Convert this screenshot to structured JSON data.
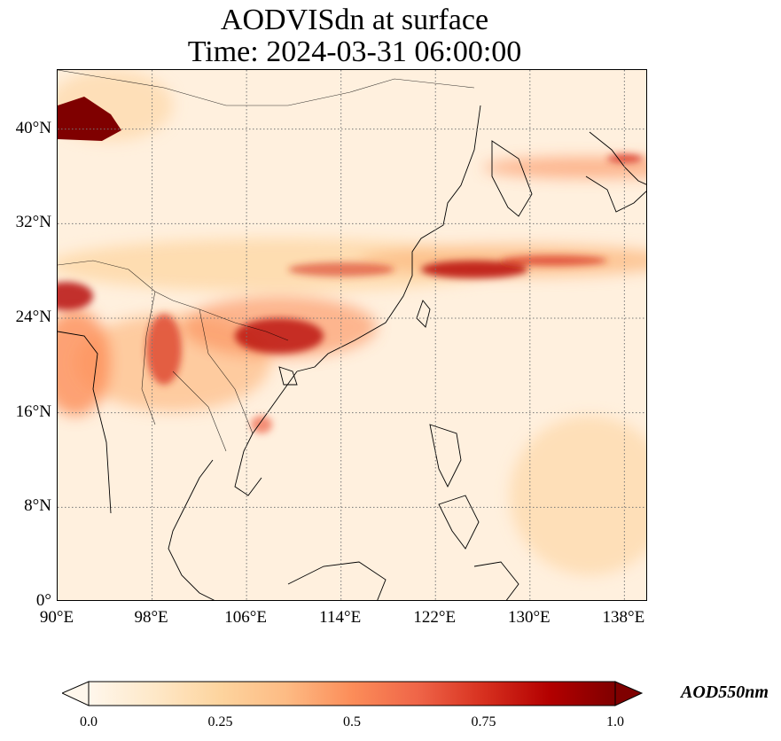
{
  "title": {
    "line1": "AODVISdn at surface",
    "line2": "Time: 2024-03-31 06:00:00"
  },
  "map": {
    "projection": "PlateCarree",
    "extent": {
      "lon": [
        90,
        140
      ],
      "lat": [
        0,
        45
      ]
    },
    "gridlines": "dotted",
    "coastlines": true,
    "borders": true
  },
  "axes": {
    "xticks": [
      {
        "value": 90,
        "label": "90°E"
      },
      {
        "value": 98,
        "label": "98°E"
      },
      {
        "value": 106,
        "label": "106°E"
      },
      {
        "value": 114,
        "label": "114°E"
      },
      {
        "value": 122,
        "label": "122°E"
      },
      {
        "value": 130,
        "label": "130°E"
      },
      {
        "value": 138,
        "label": "138°E"
      }
    ],
    "yticks": [
      {
        "value": 0,
        "label": "0°"
      },
      {
        "value": 8,
        "label": "8°N"
      },
      {
        "value": 16,
        "label": "16°N"
      },
      {
        "value": 24,
        "label": "24°N"
      },
      {
        "value": 32,
        "label": "32°N"
      },
      {
        "value": 40,
        "label": "40°N"
      }
    ]
  },
  "colorbar": {
    "label": "AOD550nm",
    "colormap": "OrRd",
    "min": 0.0,
    "max": 1.0,
    "extend": "both",
    "ticks": [
      "0.0",
      "0.25",
      "0.5",
      "0.75",
      "1.0"
    ],
    "stops": [
      "#fff7ec",
      "#fee8c8",
      "#fdd49e",
      "#fdbb84",
      "#fc8d59",
      "#ef6548",
      "#d7301f",
      "#b30000",
      "#7f0000"
    ]
  }
}
